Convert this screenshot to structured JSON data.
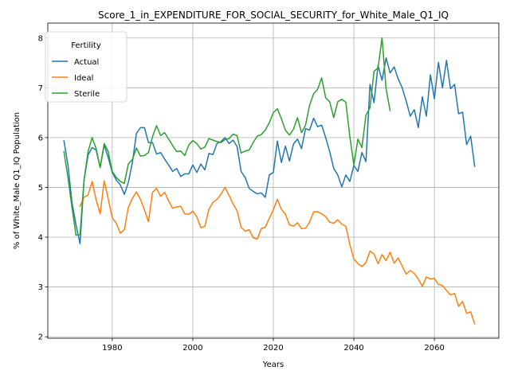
{
  "chart_data": {
    "type": "line",
    "title": "Score_1_in_EXPENDITURE_FOR_SOCIAL_SECURITY_for_White_Male_Q1_IQ",
    "xlabel": "Years",
    "ylabel": "% of White_Male Q1_IQ Population",
    "xlim": [
      1964,
      2076
    ],
    "ylim": [
      1.97,
      8.3
    ],
    "xticks": [
      1980,
      2000,
      2020,
      2040,
      2060
    ],
    "yticks": [
      2,
      3,
      4,
      5,
      6,
      7,
      8
    ],
    "grid": true,
    "legend": {
      "title": "Fertility",
      "placement": "top-left"
    },
    "series": [
      {
        "name": "Actual",
        "color": "#1f77b4",
        "x": [
          1968,
          1969,
          1970,
          1971,
          1972,
          1973,
          1974,
          1975,
          1976,
          1977,
          1978,
          1979,
          1980,
          1981,
          1982,
          1983,
          1984,
          1985,
          1986,
          1987,
          1988,
          1989,
          1990,
          1991,
          1992,
          1993,
          1994,
          1995,
          1996,
          1997,
          1998,
          1999,
          2000,
          2001,
          2002,
          2003,
          2004,
          2005,
          2006,
          2007,
          2008,
          2009,
          2010,
          2011,
          2012,
          2013,
          2014,
          2015,
          2016,
          2017,
          2018,
          2019,
          2020,
          2021,
          2022,
          2023,
          2024,
          2025,
          2026,
          2027,
          2028,
          2029,
          2030,
          2031,
          2032,
          2033,
          2034,
          2035,
          2036,
          2037,
          2038,
          2039,
          2040,
          2041,
          2042,
          2043,
          2044,
          2045,
          2046,
          2047,
          2048,
          2049,
          2050,
          2051,
          2052,
          2053,
          2054,
          2055,
          2056,
          2057,
          2058,
          2059,
          2060,
          2061,
          2062,
          2063,
          2064,
          2065,
          2066,
          2067,
          2068,
          2069,
          2070
        ],
        "values": [
          5.94,
          5.45,
          4.7,
          4.25,
          3.87,
          5.15,
          5.65,
          5.8,
          5.75,
          5.4,
          5.85,
          5.6,
          5.3,
          5.15,
          5.05,
          4.86,
          5.1,
          5.5,
          6.08,
          6.2,
          6.2,
          5.9,
          5.9,
          5.67,
          5.7,
          5.57,
          5.45,
          5.32,
          5.38,
          5.22,
          5.27,
          5.27,
          5.45,
          5.3,
          5.47,
          5.35,
          5.68,
          5.66,
          5.88,
          5.92,
          6.0,
          5.88,
          5.95,
          5.82,
          5.32,
          5.2,
          4.98,
          4.92,
          4.87,
          4.89,
          4.8,
          5.25,
          5.3,
          5.93,
          5.5,
          5.83,
          5.53,
          5.87,
          5.97,
          5.78,
          6.18,
          6.15,
          6.39,
          6.22,
          6.25,
          6.0,
          5.72,
          5.38,
          5.25,
          5.01,
          5.25,
          5.12,
          5.44,
          5.32,
          5.7,
          5.52,
          7.07,
          6.7,
          7.45,
          7.15,
          7.6,
          7.3,
          7.42,
          7.18,
          7.0,
          6.73,
          6.43,
          6.56,
          6.2,
          6.82,
          6.43,
          7.26,
          6.78,
          7.51,
          7.0,
          7.55,
          6.98,
          7.07,
          6.48,
          6.51,
          5.86,
          6.03,
          5.42
        ]
      },
      {
        "name": "Ideal",
        "color": "#ff7f0e",
        "x": [
          1972,
          1973,
          1974,
          1975,
          1976,
          1977,
          1978,
          1979,
          1980,
          1981,
          1982,
          1983,
          1984,
          1985,
          1986,
          1987,
          1988,
          1989,
          1990,
          1991,
          1992,
          1993,
          1994,
          1995,
          1996,
          1997,
          1998,
          1999,
          2000,
          2001,
          2002,
          2003,
          2004,
          2005,
          2006,
          2007,
          2008,
          2009,
          2010,
          2011,
          2012,
          2013,
          2014,
          2015,
          2016,
          2017,
          2018,
          2019,
          2020,
          2021,
          2022,
          2023,
          2024,
          2025,
          2026,
          2027,
          2028,
          2029,
          2030,
          2031,
          2032,
          2033,
          2034,
          2035,
          2036,
          2037,
          2038,
          2039,
          2040,
          2041,
          2042,
          2043,
          2044,
          2045,
          2046,
          2047,
          2048,
          2049,
          2050,
          2051,
          2052,
          2053,
          2054,
          2055,
          2056,
          2057,
          2058,
          2059,
          2060,
          2061,
          2062,
          2063,
          2064,
          2065,
          2066,
          2067,
          2068,
          2069,
          2070
        ],
        "values": [
          4.62,
          4.8,
          4.85,
          5.12,
          4.75,
          4.47,
          5.13,
          4.77,
          4.39,
          4.28,
          4.08,
          4.15,
          4.6,
          4.78,
          4.91,
          4.76,
          4.55,
          4.31,
          4.9,
          4.98,
          4.82,
          4.9,
          4.73,
          4.58,
          4.61,
          4.62,
          4.47,
          4.46,
          4.52,
          4.41,
          4.19,
          4.22,
          4.56,
          4.7,
          4.76,
          4.86,
          5.0,
          4.84,
          4.67,
          4.53,
          4.2,
          4.12,
          4.15,
          3.99,
          3.96,
          4.17,
          4.2,
          4.38,
          4.55,
          4.76,
          4.56,
          4.46,
          4.25,
          4.22,
          4.29,
          4.17,
          4.18,
          4.3,
          4.51,
          4.51,
          4.47,
          4.41,
          4.3,
          4.28,
          4.35,
          4.26,
          4.22,
          3.85,
          3.56,
          3.47,
          3.41,
          3.49,
          3.72,
          3.66,
          3.47,
          3.65,
          3.53,
          3.7,
          3.48,
          3.58,
          3.42,
          3.26,
          3.33,
          3.27,
          3.16,
          3.01,
          3.2,
          3.16,
          3.17,
          3.05,
          3.03,
          2.93,
          2.84,
          2.87,
          2.61,
          2.71,
          2.47,
          2.5,
          2.26
        ]
      },
      {
        "name": "Sterile",
        "color": "#2ca02c",
        "x": [
          1968,
          1969,
          1970,
          1971,
          1972,
          1973,
          1974,
          1975,
          1976,
          1977,
          1978,
          1979,
          1980,
          1981,
          1982,
          1983,
          1984,
          1985,
          1986,
          1987,
          1988,
          1989,
          1990,
          1991,
          1992,
          1993,
          1994,
          1995,
          1996,
          1997,
          1998,
          1999,
          2000,
          2001,
          2002,
          2003,
          2004,
          2005,
          2006,
          2007,
          2008,
          2009,
          2010,
          2011,
          2012,
          2013,
          2014,
          2015,
          2016,
          2017,
          2018,
          2019,
          2020,
          2021,
          2022,
          2023,
          2024,
          2025,
          2026,
          2027,
          2028,
          2029,
          2030,
          2031,
          2032,
          2033,
          2034,
          2035,
          2036,
          2037,
          2038,
          2039,
          2040,
          2041,
          2042,
          2043,
          2044,
          2045,
          2046,
          2047,
          2048,
          2049
        ],
        "values": [
          5.72,
          5.2,
          4.6,
          4.04,
          4.05,
          5.15,
          5.72,
          6.0,
          5.78,
          5.4,
          5.88,
          5.72,
          5.32,
          5.2,
          5.12,
          5.08,
          5.47,
          5.56,
          5.79,
          5.63,
          5.64,
          5.7,
          6.02,
          6.24,
          6.04,
          6.1,
          5.97,
          5.84,
          5.72,
          5.73,
          5.64,
          5.85,
          5.94,
          5.88,
          5.77,
          5.81,
          5.98,
          5.95,
          5.92,
          5.9,
          5.96,
          5.98,
          6.07,
          6.04,
          5.69,
          5.73,
          5.75,
          5.9,
          6.03,
          6.06,
          6.15,
          6.3,
          6.5,
          6.58,
          6.38,
          6.15,
          6.05,
          6.17,
          6.4,
          6.1,
          6.25,
          6.65,
          6.88,
          6.97,
          7.2,
          6.8,
          6.72,
          6.4,
          6.72,
          6.77,
          6.71,
          6.02,
          5.45,
          5.97,
          5.8,
          6.45,
          6.6,
          7.33,
          7.4,
          8.0,
          6.98,
          6.54
        ]
      }
    ]
  }
}
